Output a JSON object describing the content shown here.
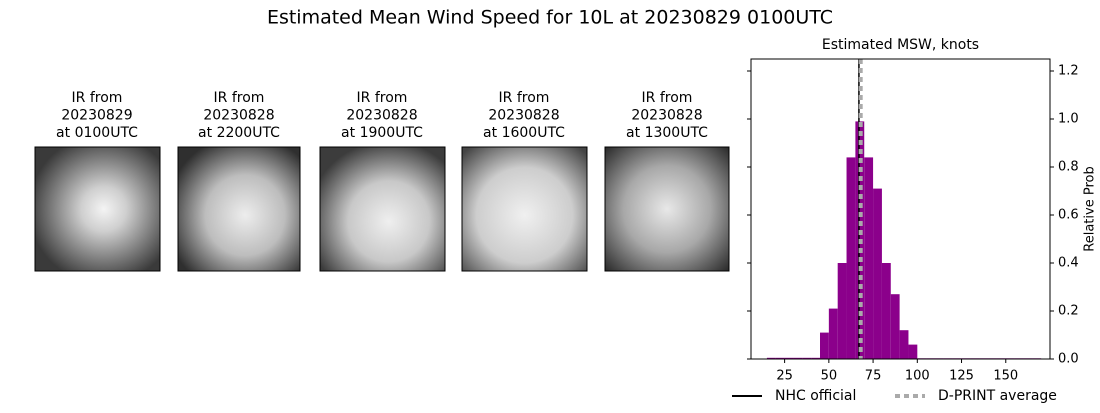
{
  "title": "Estimated Mean Wind Speed for 10L at 20230829 0100UTC",
  "images": [
    {
      "lines": [
        "IR from",
        "20230829",
        "at 0100UTC"
      ]
    },
    {
      "lines": [
        "IR from",
        "20230828",
        "at 2200UTC"
      ]
    },
    {
      "lines": [
        "IR from",
        "20230828",
        "at 1900UTC"
      ]
    },
    {
      "lines": [
        "IR from",
        "20230828",
        "at 1600UTC"
      ]
    },
    {
      "lines": [
        "IR from",
        "20230828",
        "at 1300UTC"
      ]
    }
  ],
  "chart_data": {
    "type": "histogram",
    "title": "Estimated MSW, knots",
    "ylabel": "Relative Prob",
    "color": "#8b008b",
    "bins": [
      15,
      20,
      25,
      30,
      35,
      40,
      45,
      50,
      55,
      60,
      65,
      70,
      75,
      80,
      85,
      90,
      95,
      100,
      105,
      110,
      115,
      120,
      125,
      130,
      135,
      140,
      145,
      150,
      155,
      160,
      165,
      170
    ],
    "values": [
      0.005,
      0.005,
      0.005,
      0.005,
      0.005,
      0.005,
      0.11,
      0.21,
      0.4,
      0.84,
      0.99,
      0.84,
      0.71,
      0.4,
      0.27,
      0.12,
      0.06,
      0.003,
      0.003,
      0.003,
      0.003,
      0.003,
      0.003,
      0.003,
      0.003,
      0.003,
      0.003,
      0.003,
      0.003,
      0.003,
      0.003
    ],
    "xlim": [
      6,
      175
    ],
    "xticks": [
      25,
      50,
      75,
      100,
      125,
      150
    ],
    "ylim": [
      0,
      1.25
    ],
    "yticks": [
      {
        "value": 0,
        "label": "0.0"
      },
      0.2,
      0.4,
      0.6,
      0.8,
      {
        "value": 1,
        "label": "1.0"
      },
      1.2
    ],
    "y_axis_side": "right",
    "vlines": [
      {
        "name": "NHC official",
        "value": 67,
        "color": "#000000",
        "style": "solid"
      },
      {
        "name": "D-PRINT average",
        "value": 68,
        "color": "#aaaaaa",
        "style": "dashed"
      }
    ]
  }
}
